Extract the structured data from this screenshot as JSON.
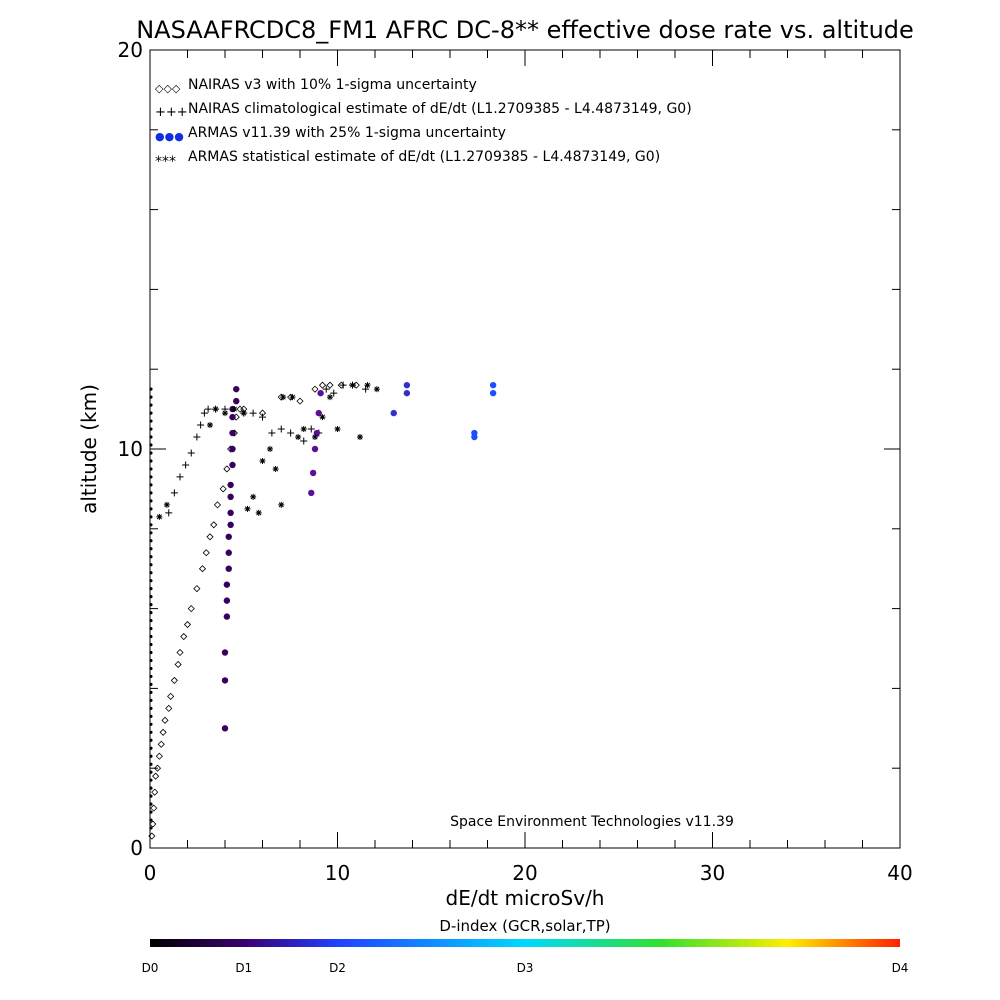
{
  "chart_data": {
    "type": "scatter",
    "title": "NASAAFRCDC8_FM1 AFRC DC-8** effective dose rate vs. altitude",
    "xlabel": "dE/dt microSv/h",
    "ylabel": "altitude (km)",
    "xlim": [
      0,
      40
    ],
    "ylim": [
      0,
      20
    ],
    "x_ticks": [
      "0",
      "10",
      "20",
      "30",
      "40"
    ],
    "y_ticks": [
      "0",
      "10",
      "20"
    ],
    "legend_position": "top-left",
    "legend": [
      {
        "symbol": "◇◇◇",
        "label": "NAIRAS v3 with 10% 1-sigma uncertainty"
      },
      {
        "symbol": "+++",
        "label": "NAIRAS climatological estimate of dE/dt (L1.2709385 - L4.4873149, G0)"
      },
      {
        "symbol": "●●●",
        "label": "ARMAS v11.39 with 25% 1-sigma uncertainty"
      },
      {
        "symbol": "***",
        "label": "ARMAS statistical estimate of dE/dt (L1.2709385 - L4.4873149, G0)"
      }
    ],
    "annotation": "Space Environment Technologies v11.39",
    "colorbar": {
      "title": "D-index (GCR,solar,TP)",
      "labels": [
        "D0",
        "D1",
        "D2",
        "D3",
        "D4"
      ],
      "label_positions": [
        0,
        0.125,
        0.25,
        0.5,
        1.0
      ],
      "colors": [
        "#000000",
        "#3a0070",
        "#2040ff",
        "#00d8ff",
        "#30e030",
        "#ffee00",
        "#ff2000"
      ]
    },
    "series": [
      {
        "name": "NAIRAS v3 with 10% 1-sigma uncertainty",
        "marker": "diamond",
        "points": [
          [
            0.1,
            0.3
          ],
          [
            0.15,
            0.6
          ],
          [
            0.2,
            1.0
          ],
          [
            0.25,
            1.4
          ],
          [
            0.3,
            1.8
          ],
          [
            0.4,
            2.0
          ],
          [
            0.5,
            2.3
          ],
          [
            0.6,
            2.6
          ],
          [
            0.7,
            2.9
          ],
          [
            0.8,
            3.2
          ],
          [
            1.0,
            3.5
          ],
          [
            1.1,
            3.8
          ],
          [
            1.3,
            4.2
          ],
          [
            1.5,
            4.6
          ],
          [
            1.6,
            4.9
          ],
          [
            1.8,
            5.3
          ],
          [
            2.0,
            5.6
          ],
          [
            2.2,
            6.0
          ],
          [
            2.5,
            6.5
          ],
          [
            2.8,
            7.0
          ],
          [
            3.0,
            7.4
          ],
          [
            3.2,
            7.8
          ],
          [
            3.4,
            8.1
          ],
          [
            3.6,
            8.6
          ],
          [
            3.9,
            9.0
          ],
          [
            4.1,
            9.5
          ],
          [
            4.3,
            10.0
          ],
          [
            4.5,
            10.4
          ],
          [
            4.6,
            10.8
          ],
          [
            4.8,
            11.0
          ],
          [
            5.0,
            11.0
          ],
          [
            6.0,
            10.9
          ],
          [
            7.0,
            11.3
          ],
          [
            7.5,
            11.3
          ],
          [
            8.0,
            11.2
          ],
          [
            8.8,
            11.5
          ],
          [
            9.2,
            11.6
          ],
          [
            9.6,
            11.6
          ],
          [
            10.2,
            11.6
          ],
          [
            11.0,
            11.6
          ]
        ]
      },
      {
        "name": "NAIRAS climatological estimate of dE/dt (L1.2709385 - L4.4873149, G0)",
        "marker": "plus",
        "points": [
          [
            1.0,
            8.4
          ],
          [
            1.3,
            8.9
          ],
          [
            1.6,
            9.3
          ],
          [
            1.9,
            9.6
          ],
          [
            2.2,
            9.9
          ],
          [
            2.5,
            10.3
          ],
          [
            2.7,
            10.6
          ],
          [
            2.9,
            10.9
          ],
          [
            3.1,
            11.0
          ],
          [
            3.5,
            11.0
          ],
          [
            4.0,
            11.0
          ],
          [
            5.0,
            10.9
          ],
          [
            5.5,
            10.9
          ],
          [
            6.0,
            10.8
          ],
          [
            6.5,
            10.4
          ],
          [
            7.0,
            10.5
          ],
          [
            7.5,
            10.4
          ],
          [
            8.2,
            10.2
          ],
          [
            8.6,
            10.5
          ],
          [
            9.0,
            10.4
          ],
          [
            9.4,
            11.5
          ],
          [
            9.8,
            11.4
          ],
          [
            10.3,
            11.6
          ],
          [
            10.8,
            11.6
          ],
          [
            11.5,
            11.5
          ]
        ]
      },
      {
        "name": "ARMAS v11.39 with 25% 1-sigma uncertainty",
        "marker": "dot",
        "points": [
          [
            4.0,
            3.0
          ],
          [
            4.0,
            4.2
          ],
          [
            4.0,
            4.9
          ],
          [
            4.1,
            5.8
          ],
          [
            4.1,
            6.2
          ],
          [
            4.1,
            6.6
          ],
          [
            4.2,
            7.0
          ],
          [
            4.2,
            7.4
          ],
          [
            4.2,
            7.8
          ],
          [
            4.3,
            8.1
          ],
          [
            4.3,
            8.4
          ],
          [
            4.3,
            8.8
          ],
          [
            4.3,
            9.1
          ],
          [
            4.4,
            9.6
          ],
          [
            4.4,
            10.0
          ],
          [
            4.4,
            10.4
          ],
          [
            4.4,
            10.8
          ],
          [
            4.4,
            11.0
          ],
          [
            4.6,
            11.2
          ],
          [
            4.6,
            11.5
          ],
          [
            8.6,
            8.9
          ],
          [
            8.7,
            9.4
          ],
          [
            8.8,
            10.0
          ],
          [
            8.9,
            10.4
          ],
          [
            9.0,
            10.9
          ],
          [
            9.1,
            11.4
          ],
          [
            13.0,
            10.9
          ],
          [
            13.7,
            11.4
          ],
          [
            13.7,
            11.6
          ],
          [
            17.3,
            10.3
          ],
          [
            17.3,
            10.4
          ],
          [
            18.3,
            11.4
          ],
          [
            18.3,
            11.6
          ]
        ]
      },
      {
        "name": "ARMAS statistical estimate of dE/dt (L1.2709385 - L4.4873149, G0)",
        "marker": "asterisk",
        "points": [
          [
            0.5,
            8.3
          ],
          [
            0.9,
            8.6
          ],
          [
            3.2,
            10.6
          ],
          [
            3.5,
            11.0
          ],
          [
            4.0,
            10.9
          ],
          [
            4.5,
            11.0
          ],
          [
            5.0,
            10.9
          ],
          [
            5.2,
            8.5
          ],
          [
            5.5,
            8.8
          ],
          [
            5.8,
            8.4
          ],
          [
            6.0,
            9.7
          ],
          [
            6.4,
            10.0
          ],
          [
            6.7,
            9.5
          ],
          [
            7.0,
            8.6
          ],
          [
            7.1,
            11.3
          ],
          [
            7.6,
            11.3
          ],
          [
            7.9,
            10.3
          ],
          [
            8.2,
            10.5
          ],
          [
            8.8,
            10.3
          ],
          [
            9.2,
            10.8
          ],
          [
            9.6,
            11.3
          ],
          [
            10.0,
            10.5
          ],
          [
            10.8,
            11.6
          ],
          [
            11.2,
            10.3
          ],
          [
            11.6,
            11.6
          ],
          [
            12.1,
            11.5
          ]
        ]
      }
    ]
  }
}
